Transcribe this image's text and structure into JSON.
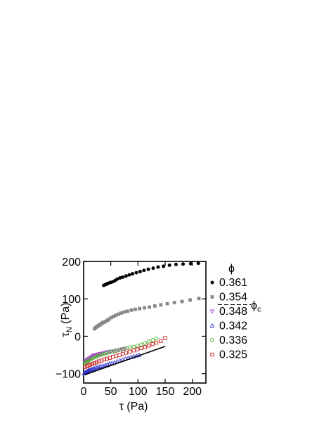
{
  "chart_data": {
    "type": "scatter",
    "xlabel": "τ (Pa)",
    "ylabel": "τ",
    "ylabel_sub": "N",
    "ylabel_unit": " (Pa)",
    "xlim": [
      0,
      225
    ],
    "ylim": [
      -125,
      200
    ],
    "xticks": [
      0,
      50,
      100,
      150,
      200
    ],
    "yticks": [
      -100,
      0,
      100,
      200
    ],
    "xtick_labels": [
      "0",
      "50",
      "100",
      "150",
      "200"
    ],
    "ytick_labels": [
      "−100",
      "0",
      "100",
      "200"
    ],
    "legend_title": "ϕ",
    "legend_critical_label": "ϕ",
    "legend_critical_sub": "c",
    "series": [
      {
        "name": "0.361",
        "marker": "filled-circle",
        "color": "#000000",
        "points": [
          [
            37,
            136
          ],
          [
            40,
            138
          ],
          [
            43,
            140
          ],
          [
            46,
            142
          ],
          [
            50,
            144
          ],
          [
            54,
            146
          ],
          [
            58,
            149
          ],
          [
            62,
            153
          ],
          [
            67,
            156
          ],
          [
            72,
            158
          ],
          [
            78,
            161
          ],
          [
            84,
            164
          ],
          [
            90,
            167
          ],
          [
            97,
            170
          ],
          [
            104,
            173
          ],
          [
            111,
            176
          ],
          [
            119,
            179
          ],
          [
            128,
            182
          ],
          [
            137,
            185
          ],
          [
            147,
            187
          ],
          [
            158,
            190
          ],
          [
            170,
            192
          ],
          [
            183,
            193
          ],
          [
            197,
            194
          ],
          [
            211,
            195
          ]
        ]
      },
      {
        "name": "0.354",
        "marker": "filled-square",
        "color": "#888888",
        "points": [
          [
            20,
            20
          ],
          [
            22,
            23
          ],
          [
            24,
            25
          ],
          [
            26,
            27
          ],
          [
            28,
            29
          ],
          [
            30,
            31
          ],
          [
            32,
            33
          ],
          [
            34,
            35
          ],
          [
            36,
            37
          ],
          [
            38,
            38
          ],
          [
            41,
            40
          ],
          [
            44,
            43
          ],
          [
            47,
            46
          ],
          [
            51,
            50
          ],
          [
            55,
            53
          ],
          [
            59,
            56
          ],
          [
            64,
            59
          ],
          [
            69,
            62
          ],
          [
            75,
            65
          ],
          [
            81,
            67
          ],
          [
            88,
            70
          ],
          [
            95,
            72
          ],
          [
            103,
            74
          ],
          [
            112,
            76
          ],
          [
            121,
            78
          ],
          [
            131,
            81
          ],
          [
            142,
            84
          ],
          [
            154,
            87
          ],
          [
            167,
            90
          ],
          [
            181,
            93
          ],
          [
            196,
            97
          ],
          [
            212,
            101
          ]
        ]
      },
      {
        "name": "0.348",
        "marker": "open-triangle-down",
        "color": "#aa44cc",
        "points": [
          [
            2,
            -68
          ],
          [
            4,
            -66
          ],
          [
            6,
            -64
          ],
          [
            8,
            -62
          ],
          [
            10,
            -60
          ],
          [
            12,
            -58
          ],
          [
            14,
            -56
          ],
          [
            16,
            -54
          ],
          [
            18,
            -52
          ],
          [
            20,
            -51
          ],
          [
            22,
            -50
          ],
          [
            25,
            -49
          ],
          [
            28,
            -48
          ],
          [
            31,
            -47
          ],
          [
            34,
            -46
          ],
          [
            38,
            -45
          ],
          [
            42,
            -43
          ],
          [
            46,
            -42
          ],
          [
            50,
            -41
          ],
          [
            55,
            -40
          ],
          [
            60,
            -38
          ],
          [
            65,
            -37
          ],
          [
            70,
            -35
          ],
          [
            76,
            -33
          ]
        ]
      },
      {
        "name": "0.342",
        "marker": "open-triangle-up",
        "color": "#3333cc",
        "points": [
          [
            1,
            -99
          ],
          [
            2,
            -98
          ],
          [
            3,
            -97
          ],
          [
            4,
            -96
          ],
          [
            5,
            -96
          ],
          [
            6,
            -95
          ],
          [
            7,
            -94
          ],
          [
            8,
            -93
          ],
          [
            9,
            -92
          ],
          [
            10,
            -91
          ],
          [
            12,
            -90
          ],
          [
            14,
            -89
          ],
          [
            16,
            -88
          ],
          [
            18,
            -87
          ],
          [
            20,
            -86
          ],
          [
            23,
            -84
          ],
          [
            26,
            -83
          ],
          [
            29,
            -82
          ],
          [
            32,
            -80
          ],
          [
            36,
            -79
          ],
          [
            40,
            -77
          ],
          [
            44,
            -75
          ],
          [
            48,
            -73
          ],
          [
            52,
            -72
          ],
          [
            57,
            -70
          ],
          [
            62,
            -67
          ],
          [
            67,
            -65
          ],
          [
            72,
            -63
          ],
          [
            77,
            -60
          ],
          [
            82,
            -58
          ],
          [
            87,
            -56
          ],
          [
            92,
            -54
          ],
          [
            97,
            -52
          ],
          [
            102,
            -50
          ]
        ]
      },
      {
        "name": "0.336",
        "marker": "open-circle",
        "color": "#44aa22",
        "points": [
          [
            2,
            -72
          ],
          [
            4,
            -70
          ],
          [
            6,
            -68
          ],
          [
            8,
            -66
          ],
          [
            10,
            -64
          ],
          [
            12,
            -62
          ],
          [
            15,
            -60
          ],
          [
            18,
            -58
          ],
          [
            21,
            -56
          ],
          [
            24,
            -54
          ],
          [
            27,
            -52
          ],
          [
            31,
            -50
          ],
          [
            35,
            -48
          ],
          [
            39,
            -47
          ],
          [
            43,
            -45
          ],
          [
            47,
            -43
          ],
          [
            52,
            -41
          ],
          [
            57,
            -40
          ],
          [
            62,
            -38
          ],
          [
            67,
            -36
          ],
          [
            73,
            -34
          ],
          [
            79,
            -32
          ],
          [
            85,
            -30
          ],
          [
            92,
            -28
          ],
          [
            99,
            -25
          ],
          [
            106,
            -22
          ],
          [
            113,
            -18
          ],
          [
            120,
            -14
          ],
          [
            127,
            -10
          ],
          [
            134,
            -6
          ]
        ]
      },
      {
        "name": "0.325",
        "marker": "open-square",
        "color": "#cc2222",
        "points": [
          [
            3,
            -82
          ],
          [
            6,
            -80
          ],
          [
            9,
            -78
          ],
          [
            12,
            -76
          ],
          [
            16,
            -74
          ],
          [
            20,
            -72
          ],
          [
            24,
            -70
          ],
          [
            28,
            -67
          ],
          [
            33,
            -65
          ],
          [
            38,
            -62
          ],
          [
            43,
            -60
          ],
          [
            48,
            -58
          ],
          [
            54,
            -55
          ],
          [
            60,
            -52
          ],
          [
            66,
            -50
          ],
          [
            72,
            -47
          ],
          [
            78,
            -44
          ],
          [
            85,
            -41
          ],
          [
            92,
            -38
          ],
          [
            99,
            -35
          ],
          [
            106,
            -32
          ],
          [
            113,
            -29
          ],
          [
            120,
            -25
          ],
          [
            127,
            -21
          ],
          [
            134,
            -17
          ],
          [
            142,
            -13
          ],
          [
            150,
            -5
          ]
        ]
      }
    ],
    "fit_line": {
      "x": [
        2,
        150
      ],
      "y": [
        -103,
        -27
      ],
      "color": "#000000"
    }
  }
}
